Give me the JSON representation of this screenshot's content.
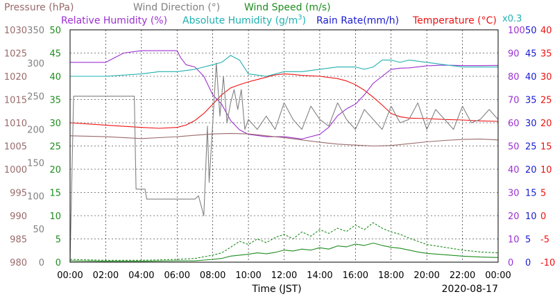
{
  "chart_data": {
    "type": "line",
    "date": "2020-08-17",
    "xlabel": "Time (JST)",
    "x_ticks": [
      "00:00",
      "02:00",
      "04:00",
      "06:00",
      "08:00",
      "10:00",
      "12:00",
      "14:00",
      "16:00",
      "18:00",
      "20:00",
      "22:00",
      "00:00"
    ],
    "x_range_hours": [
      0,
      24
    ],
    "grid": true,
    "legend_row1": [
      {
        "name": "Pressure (hPa)",
        "color": "#9a6a6a"
      },
      {
        "name": "Wind Direction (°)",
        "color": "#808080"
      },
      {
        "name": "Wind Speed (m/s)",
        "color": "#1e8c1e"
      }
    ],
    "legend_row2": [
      {
        "name": "Relative Humidity (%)",
        "color": "#9b30d0"
      },
      {
        "name_main": "Absolute Humidity (g/m",
        "name_sup": "3",
        "name_end": ")",
        "color": "#20b0b0"
      },
      {
        "name": "Rain Rate(mm/h)",
        "color": "#1a1ad0"
      },
      {
        "name": "Temperature (°C)",
        "color": "#ee1111"
      }
    ],
    "abs_humidity_scale_note": "x0.3",
    "axes": {
      "pressure": {
        "color": "#9a6a6a",
        "range": [
          980,
          1030
        ],
        "ticks": [
          "1030",
          "1025",
          "1020",
          "1015",
          "1010",
          "1005",
          "1000",
          "995",
          "990",
          "985",
          "980"
        ]
      },
      "wind_direction": {
        "color": "#808080",
        "range": [
          0,
          350
        ],
        "ticks": [
          "350",
          "300",
          "250",
          "200",
          "150",
          "100",
          "50",
          "0"
        ]
      },
      "wind_speed": {
        "color": "#1e8c1e",
        "range": [
          0,
          50
        ],
        "ticks": [
          "50",
          "45",
          "40",
          "35",
          "30",
          "25",
          "20",
          "15",
          "10",
          "5",
          "0"
        ]
      },
      "humidity": {
        "color": "#9b30d0",
        "range": [
          0,
          100
        ],
        "ticks": [
          "100",
          "90",
          "80",
          "70",
          "60",
          "50",
          "40",
          "30",
          "20",
          "10",
          "0"
        ]
      },
      "rain_rate": {
        "color": "#1a1ad0",
        "range": [
          0,
          50
        ],
        "ticks": [
          "50",
          "45",
          "40",
          "35",
          "30",
          "25",
          "20",
          "15",
          "10",
          "5",
          "0"
        ]
      },
      "temperature": {
        "color": "#ee1111",
        "range": [
          -10,
          40
        ],
        "ticks": [
          "40",
          "35",
          "30",
          "25",
          "20",
          "15",
          "10",
          "5",
          "0",
          "-5",
          "-10"
        ]
      }
    },
    "series": [
      {
        "name": "Temperature (°C)",
        "axis": "temperature",
        "color": "#ee1111",
        "x": [
          0,
          2,
          4,
          5,
          6,
          6.5,
          7,
          7.5,
          8,
          8.5,
          9,
          9.5,
          10,
          10.5,
          11,
          11.5,
          12,
          12.5,
          13,
          14,
          15,
          15.5,
          16,
          16.5,
          17,
          17.5,
          18,
          18.5,
          19,
          20,
          21,
          22,
          23,
          24
        ],
        "y": [
          20.0,
          19.5,
          19.0,
          18.8,
          19.0,
          19.5,
          20.5,
          22.0,
          24.0,
          26.0,
          27.5,
          28.2,
          28.8,
          29.3,
          29.8,
          30.3,
          30.5,
          30.4,
          30.2,
          30.0,
          29.5,
          29.0,
          28.2,
          27.0,
          25.5,
          23.8,
          22.0,
          21.3,
          21.0,
          20.9,
          20.7,
          20.6,
          20.4,
          20.3
        ]
      },
      {
        "name": "Relative Humidity (%)",
        "axis": "humidity",
        "color": "#9b30d0",
        "x": [
          0,
          2,
          3,
          4,
          5,
          5.5,
          6,
          6.2,
          6.5,
          7,
          7.5,
          8,
          8.5,
          9,
          9.5,
          10,
          11,
          12,
          13,
          14,
          14.5,
          15,
          15.5,
          16,
          16.5,
          17,
          17.5,
          18,
          18.5,
          19,
          20,
          21,
          22,
          23,
          24
        ],
        "y": [
          86,
          86,
          90,
          91,
          91,
          91,
          91,
          88,
          85,
          84,
          80,
          72,
          68,
          61,
          57,
          55,
          54,
          54,
          53,
          55,
          58,
          63,
          66,
          68,
          72,
          77,
          80,
          83,
          83.5,
          83.6,
          84.5,
          84.8,
          84.6,
          84.6,
          84.7
        ]
      },
      {
        "name": "Absolute Humidity (g/m3) x0.3",
        "axis": "humidity",
        "color": "#20b0b0",
        "x": [
          0,
          2,
          4,
          5,
          6,
          7,
          8,
          8.5,
          9,
          9.5,
          10,
          11,
          12,
          13,
          14,
          15,
          16,
          16.5,
          17,
          17.5,
          18,
          18.5,
          19,
          20,
          21,
          22,
          23,
          24
        ],
        "y": [
          80,
          80,
          81,
          82,
          82,
          83,
          85,
          86,
          89,
          87,
          81,
          80,
          82,
          82,
          83,
          84,
          84,
          83,
          84,
          87,
          87,
          86,
          87,
          86,
          85,
          84,
          84,
          84
        ]
      },
      {
        "name": "Pressure (hPa)",
        "axis": "pressure",
        "color": "#9a6a6a",
        "x": [
          0,
          2,
          4,
          6,
          8,
          9,
          10,
          11,
          12,
          13,
          14,
          15,
          16,
          17,
          18,
          19,
          20,
          21,
          22,
          23,
          24
        ],
        "y": [
          1007.2,
          1007.0,
          1006.6,
          1007.0,
          1007.6,
          1007.7,
          1007.6,
          1007.2,
          1006.8,
          1006.3,
          1005.8,
          1005.4,
          1005.2,
          1005.0,
          1005.1,
          1005.5,
          1005.9,
          1006.2,
          1006.4,
          1006.5,
          1006.3
        ]
      },
      {
        "name": "Wind Direction (°)",
        "axis": "wind_direction",
        "color": "#808080",
        "x": [
          0,
          0.2,
          0.3,
          1,
          2,
          3,
          3.6,
          3.7,
          4.2,
          4.3,
          5,
          6,
          7,
          7.2,
          7.5,
          7.7,
          7.8,
          8,
          8.2,
          8.4,
          8.6,
          8.8,
          9,
          9.2,
          9.4,
          9.6,
          9.8,
          10,
          10.5,
          11,
          11.5,
          12,
          12.5,
          13,
          13.5,
          14,
          14.5,
          15,
          15.5,
          16,
          16.5,
          17,
          17.5,
          18,
          18.5,
          19,
          19.5,
          20,
          20.5,
          21,
          21.5,
          22,
          22.5,
          23,
          23.5,
          24
        ],
        "y": [
          0,
          250,
          250,
          250,
          250,
          250,
          250,
          110,
          110,
          95,
          95,
          95,
          95,
          100,
          70,
          205,
          120,
          210,
          300,
          220,
          280,
          210,
          240,
          260,
          230,
          260,
          200,
          215,
          200,
          220,
          200,
          240,
          215,
          200,
          235,
          215,
          205,
          240,
          215,
          200,
          230,
          215,
          200,
          235,
          210,
          215,
          240,
          200,
          230,
          215,
          200,
          235,
          210,
          215,
          230,
          215
        ]
      },
      {
        "name": "Wind Speed (m/s)",
        "axis": "wind_speed",
        "color": "#1e8c1e",
        "x": [
          0,
          2,
          4,
          6,
          7,
          8,
          8.5,
          9,
          9.5,
          10,
          10.5,
          11,
          11.5,
          12,
          12.5,
          13,
          13.5,
          14,
          14.5,
          15,
          15.5,
          16,
          16.5,
          17,
          17.5,
          18,
          18.5,
          19,
          19.5,
          20,
          21,
          22,
          23,
          24
        ],
        "y": [
          0.3,
          0.2,
          0.2,
          0.3,
          0.3,
          0.6,
          0.8,
          1.3,
          1.5,
          1.7,
          2.0,
          1.8,
          2.1,
          2.6,
          2.4,
          2.8,
          2.6,
          3.1,
          2.8,
          3.5,
          3.3,
          3.9,
          3.6,
          4.1,
          3.6,
          3.2,
          3.0,
          2.6,
          2.2,
          1.9,
          1.6,
          1.3,
          1.1,
          1.0
        ]
      },
      {
        "name": "Wind Speed gust (m/s)",
        "axis": "wind_speed",
        "color": "#1e8c1e",
        "dashed": true,
        "x": [
          0,
          2,
          4,
          6,
          7,
          8,
          8.5,
          9,
          9.5,
          10,
          10.5,
          11,
          11.5,
          12,
          12.5,
          13,
          13.5,
          14,
          14.5,
          15,
          15.5,
          16,
          16.5,
          17,
          17.5,
          18,
          18.5,
          19,
          19.5,
          20,
          21,
          22,
          23,
          24
        ],
        "y": [
          0.6,
          0.4,
          0.4,
          0.6,
          0.8,
          1.5,
          2.0,
          3.2,
          4.5,
          3.8,
          5.0,
          4.2,
          5.3,
          6.0,
          5.0,
          6.5,
          5.6,
          7.0,
          6.2,
          7.3,
          6.6,
          8.0,
          7.0,
          8.5,
          7.3,
          6.5,
          6.0,
          5.2,
          4.5,
          3.8,
          3.2,
          2.6,
          2.2,
          2.0
        ]
      },
      {
        "name": "Rain Rate(mm/h)",
        "axis": "rain_rate",
        "color": "#1a1ad0",
        "x": [
          0,
          24
        ],
        "y": [
          0,
          0
        ]
      }
    ]
  }
}
